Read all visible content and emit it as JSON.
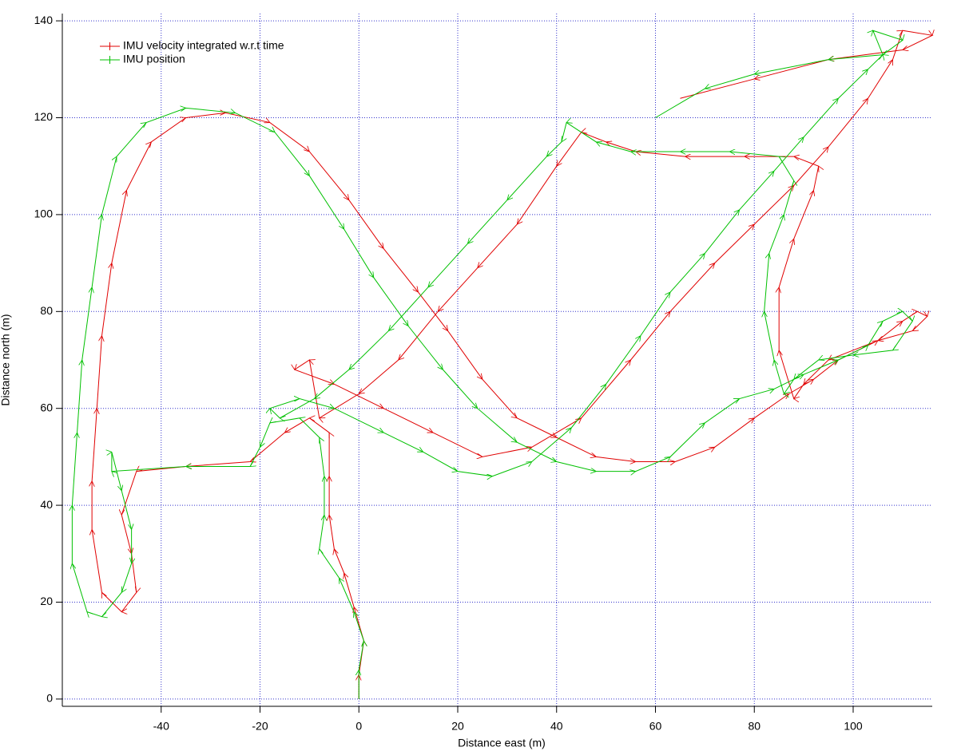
{
  "chart_data": {
    "type": "line",
    "x_label": "Distance east (m)",
    "y_label": "Distance north (m)",
    "xlim": [
      -60,
      116
    ],
    "ylim": [
      -1.5,
      141.5
    ],
    "xticks": [
      -40,
      -20,
      0,
      20,
      40,
      60,
      80,
      100
    ],
    "yticks": [
      0,
      20,
      40,
      60,
      80,
      100,
      120,
      140
    ],
    "grid": true,
    "legend": "upper left",
    "series": [
      {
        "name": "IMU velocity integrated w.r.t time",
        "color": "#e00000",
        "x": [
          0,
          0,
          1,
          -1,
          -3,
          -5,
          -6,
          -6,
          -6,
          -10,
          -15,
          -22,
          -35,
          -45,
          -48,
          -46,
          -45,
          -48,
          -52,
          -54,
          -54,
          -53,
          -52,
          -50,
          -47,
          -42,
          -35,
          -27,
          -18,
          -10,
          -2,
          5,
          12,
          18,
          25,
          32,
          40,
          48,
          56,
          64,
          72,
          80,
          87,
          92,
          97,
          105,
          110,
          113,
          115,
          112,
          105,
          95,
          90,
          88,
          85,
          85,
          88,
          92,
          93,
          88,
          78,
          66,
          56,
          50,
          45,
          40,
          32,
          24,
          16,
          8,
          0,
          -8,
          -10,
          -13,
          -5,
          5,
          15,
          25,
          35,
          45,
          55,
          63,
          72,
          80,
          88,
          95,
          103,
          108,
          110,
          116,
          110,
          95,
          80,
          65
        ],
        "y": [
          0,
          5,
          12,
          19,
          26,
          31,
          38,
          46,
          55,
          58,
          55,
          49,
          48,
          47,
          38,
          30,
          22,
          18,
          22,
          35,
          45,
          60,
          75,
          90,
          105,
          115,
          120,
          121,
          119,
          113,
          103,
          93,
          84,
          76,
          66,
          58,
          54,
          50,
          49,
          49,
          52,
          58,
          63,
          66,
          70,
          74,
          78,
          80,
          79,
          76,
          74,
          70,
          65,
          62,
          72,
          85,
          95,
          105,
          110,
          112,
          112,
          112,
          113,
          115,
          117,
          110,
          98,
          89,
          80,
          70,
          63,
          58,
          70,
          68,
          65,
          60,
          55,
          50,
          52,
          58,
          70,
          80,
          90,
          98,
          106,
          114,
          124,
          132,
          138,
          137,
          134,
          132,
          128,
          124
        ]
      },
      {
        "name": "IMU position",
        "color": "#00c000",
        "x": [
          0,
          0,
          1,
          -1,
          -4,
          -8,
          -7,
          -7,
          -8,
          -12,
          -18,
          -20,
          -22,
          -35,
          -50,
          -50,
          -48,
          -46,
          -46,
          -48,
          -52,
          -55,
          -58,
          -58,
          -57,
          -56,
          -54,
          -52,
          -49,
          -43,
          -35,
          -25,
          -17,
          -10,
          -3,
          3,
          10,
          17,
          24,
          32,
          40,
          48,
          56,
          63,
          70,
          77,
          84,
          90,
          97,
          103,
          106,
          110,
          112,
          108,
          100,
          93,
          88,
          86,
          84,
          82,
          83,
          86,
          88,
          85,
          75,
          65,
          55,
          48,
          42,
          41,
          38,
          30,
          22,
          14,
          6,
          -2,
          -9,
          -16,
          -18,
          -12,
          -5,
          5,
          13,
          20,
          27,
          35,
          43,
          50,
          57,
          63,
          70,
          77,
          84,
          90,
          97,
          103,
          106,
          104,
          110,
          106,
          95,
          80,
          70,
          60
        ],
        "y": [
          0,
          6,
          12,
          18,
          25,
          31,
          38,
          46,
          54,
          58,
          57,
          52,
          48,
          48,
          47,
          51,
          43,
          35,
          28,
          22,
          17,
          18,
          28,
          40,
          55,
          70,
          85,
          100,
          112,
          119,
          122,
          121,
          117,
          108,
          97,
          87,
          77,
          68,
          60,
          53,
          49,
          47,
          47,
          50,
          57,
          62,
          64,
          67,
          70,
          73,
          78,
          80,
          78,
          72,
          71,
          70,
          66,
          63,
          70,
          80,
          92,
          100,
          107,
          112,
          113,
          113,
          113,
          115,
          119,
          115,
          112,
          103,
          94,
          85,
          76,
          68,
          62,
          58,
          60,
          62,
          60,
          55,
          51,
          47,
          46,
          49,
          56,
          65,
          75,
          84,
          92,
          101,
          109,
          116,
          124,
          130,
          133,
          138,
          136,
          133,
          132,
          129,
          126,
          120
        ]
      }
    ]
  }
}
